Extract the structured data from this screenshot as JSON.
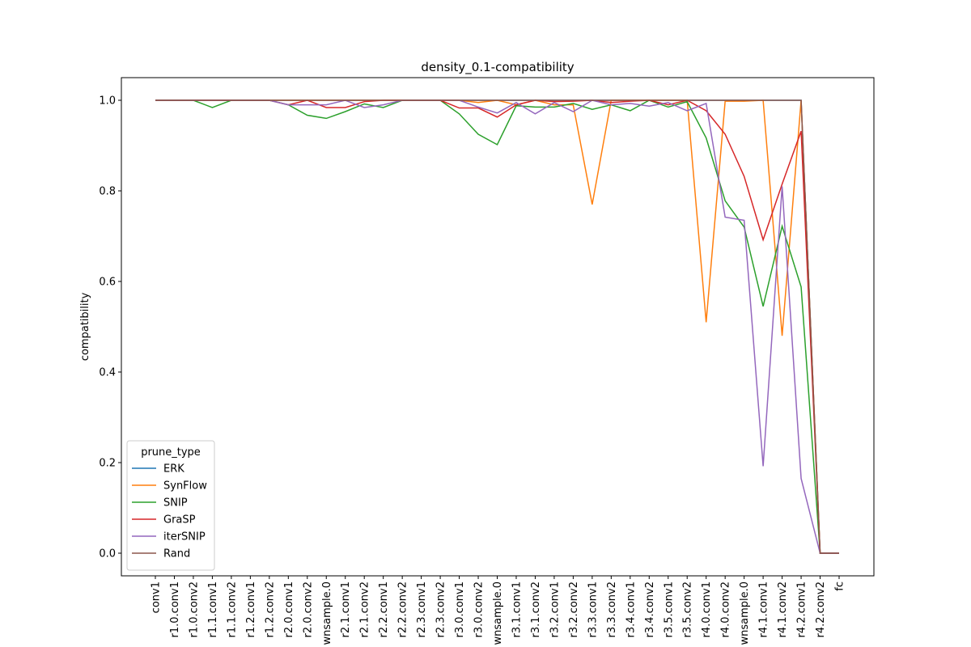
{
  "chart_data": {
    "type": "line",
    "title": "density_0.1-compatibility",
    "y_label": "compatibility",
    "categories": [
      "conv1",
      "r1.0.conv1",
      "r1.0.conv2",
      "r1.1.conv1",
      "r1.1.conv2",
      "r1.2.conv1",
      "r1.2.conv2",
      "r2.0.conv1",
      "r2.0.conv2",
      "wnsample.0",
      "r2.1.conv1",
      "r2.1.conv2",
      "r2.2.conv1",
      "r2.2.conv2",
      "r2.3.conv1",
      "r2.3.conv2",
      "r3.0.conv1",
      "r3.0.conv2",
      "wnsample.0",
      "r3.1.conv1",
      "r3.1.conv2",
      "r3.2.conv1",
      "r3.2.conv2",
      "r3.3.conv1",
      "r3.3.conv2",
      "r3.4.conv1",
      "r3.4.conv2",
      "r3.5.conv1",
      "r3.5.conv2",
      "r4.0.conv1",
      "r4.0.conv2",
      "wnsample.0",
      "r4.1.conv1",
      "r4.1.conv2",
      "r4.2.conv1",
      "r4.2.conv2",
      "fc"
    ],
    "series": [
      {
        "name": "ERK",
        "color": "#1f77b4",
        "values": [
          1,
          1,
          1,
          1,
          1,
          1,
          1,
          1,
          1,
          1,
          1,
          1,
          1,
          1,
          1,
          1,
          1,
          1,
          1,
          1,
          1,
          1,
          1,
          1,
          1,
          1,
          1,
          1,
          1,
          1,
          1,
          1,
          1,
          1,
          1,
          0,
          0
        ]
      },
      {
        "name": "SynFlow",
        "color": "#ff7f0e",
        "values": [
          1,
          1,
          1,
          1,
          1,
          1,
          1,
          1,
          1,
          1,
          1,
          1,
          1,
          1,
          1,
          1,
          1,
          0.995,
          1,
          0.99,
          1,
          0.99,
          0.99,
          0.77,
          1,
          1,
          1,
          1,
          1,
          0.51,
          0.998,
          0.998,
          1,
          0.48,
          1,
          0,
          0
        ]
      },
      {
        "name": "SNIP",
        "color": "#2ca02c",
        "values": [
          1,
          1,
          1,
          0.984,
          1,
          1,
          1,
          0.99,
          0.967,
          0.96,
          0.975,
          0.992,
          0.984,
          1,
          1,
          1,
          0.97,
          0.925,
          0.902,
          0.988,
          0.985,
          0.985,
          0.993,
          0.98,
          0.99,
          0.977,
          1,
          0.985,
          0.997,
          0.917,
          0.778,
          0.72,
          0.545,
          0.722,
          0.588,
          0,
          0
        ]
      },
      {
        "name": "GraSP",
        "color": "#d62728",
        "values": [
          1,
          1,
          1,
          1,
          1,
          1,
          1,
          0.99,
          1,
          0.984,
          0.984,
          0.997,
          1,
          1,
          1,
          1,
          0.983,
          0.983,
          0.963,
          0.99,
          1,
          0.997,
          0.998,
          1,
          0.995,
          0.998,
          1,
          0.99,
          1,
          0.977,
          0.925,
          0.832,
          0.692,
          0.815,
          0.932,
          0,
          0
        ]
      },
      {
        "name": "iterSNIP",
        "color": "#9467bd",
        "values": [
          1,
          1,
          1,
          1,
          1,
          1,
          1,
          0.99,
          0.99,
          0.99,
          1,
          0.984,
          0.99,
          1,
          1,
          1,
          1,
          0.985,
          0.972,
          0.995,
          0.97,
          0.995,
          0.975,
          1,
          0.99,
          0.993,
          0.987,
          0.995,
          0.977,
          0.993,
          0.742,
          0.735,
          0.192,
          0.81,
          0.165,
          0,
          0
        ]
      },
      {
        "name": "Rand",
        "color": "#8c564b",
        "values": [
          1,
          1,
          1,
          1,
          1,
          1,
          1,
          1,
          1,
          1,
          1,
          1,
          1,
          1,
          1,
          1,
          1,
          1,
          1,
          1,
          1,
          1,
          1,
          1,
          1,
          1,
          1,
          1,
          1,
          1,
          1,
          1,
          1,
          1,
          1,
          0,
          0
        ]
      }
    ],
    "legend_title": "prune_type",
    "legend": "lower left",
    "ylim": [
      -0.05,
      1.05
    ],
    "yticks": [
      {
        "value": 0,
        "label": "0.0"
      },
      {
        "value": 0.2,
        "label": "0.2"
      },
      {
        "value": 0.4,
        "label": "0.4"
      },
      {
        "value": 0.6,
        "label": "0.6"
      },
      {
        "value": 0.8,
        "label": "0.8"
      },
      {
        "value": 1,
        "label": "1.0"
      }
    ]
  }
}
